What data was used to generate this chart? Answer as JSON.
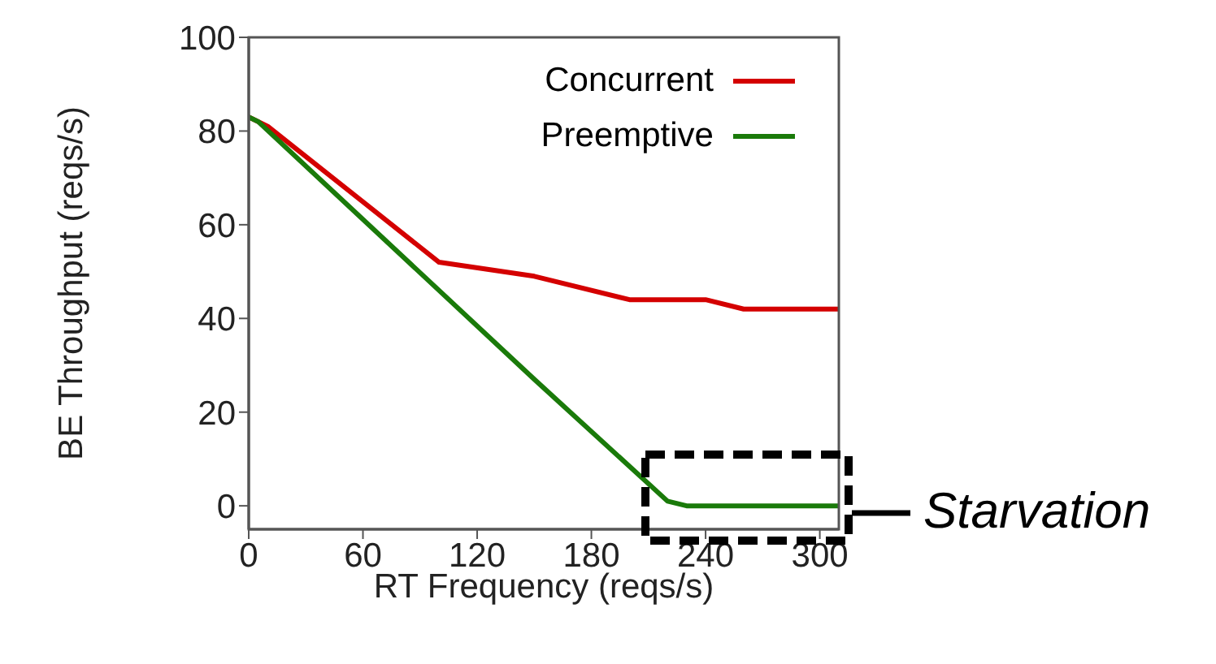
{
  "chart_data": {
    "type": "line",
    "xlabel": "RT Frequency (reqs/s)",
    "ylabel": "BE Throughput (reqs/s)",
    "xlim": [
      0,
      310
    ],
    "xticks": [
      0,
      60,
      120,
      180,
      240,
      300
    ],
    "ylim": [
      -5,
      100
    ],
    "yticks": [
      0,
      20,
      40,
      60,
      80,
      100
    ],
    "grid": false,
    "legend": "top right",
    "marker": "none",
    "line_style": "solid",
    "series": [
      {
        "name": "Concurrent",
        "color": "#d40000",
        "x": [
          0,
          10,
          100,
          150,
          200,
          240,
          260,
          310
        ],
        "values": [
          83,
          81,
          52,
          49,
          44,
          44,
          42,
          42
        ]
      },
      {
        "name": "Preemptive",
        "color": "#1a7a0a",
        "x": [
          0,
          5,
          150,
          220,
          230,
          310
        ],
        "values": [
          83,
          82,
          27,
          1,
          0,
          0
        ]
      }
    ],
    "annotations": [
      "Starvation"
    ]
  }
}
